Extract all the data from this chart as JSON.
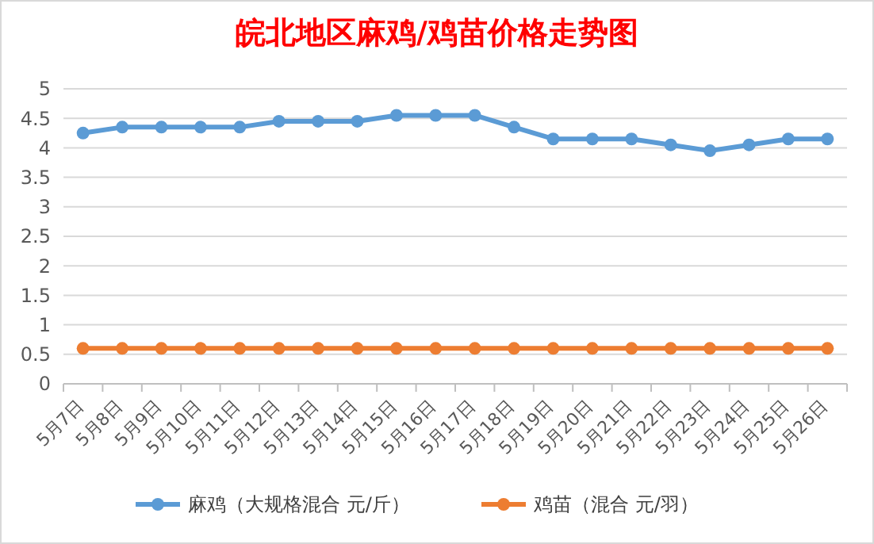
{
  "chart_data": {
    "type": "line",
    "title": "皖北地区麻鸡/鸡苗价格走势图",
    "categories": [
      "5月7日",
      "5月8日",
      "5月9日",
      "5月10日",
      "5月11日",
      "5月12日",
      "5月13日",
      "5月14日",
      "5月15日",
      "5月16日",
      "5月17日",
      "5月18日",
      "5月19日",
      "5月20日",
      "5月21日",
      "5月22日",
      "5月23日",
      "5月24日",
      "5月25日",
      "5月26日"
    ],
    "series": [
      {
        "name": "麻鸡（大规格混合 元/斤）",
        "color": "#5b9bd5",
        "values": [
          4.25,
          4.35,
          4.35,
          4.35,
          4.35,
          4.45,
          4.45,
          4.45,
          4.55,
          4.55,
          4.55,
          4.35,
          4.15,
          4.15,
          4.15,
          4.05,
          3.95,
          4.05,
          4.15,
          4.15
        ]
      },
      {
        "name": "鸡苗（混合 元/羽）",
        "color": "#ed7d31",
        "values": [
          0.6,
          0.6,
          0.6,
          0.6,
          0.6,
          0.6,
          0.6,
          0.6,
          0.6,
          0.6,
          0.6,
          0.6,
          0.6,
          0.6,
          0.6,
          0.6,
          0.6,
          0.6,
          0.6,
          0.6
        ]
      }
    ],
    "ylim": [
      0,
      5
    ],
    "yticks": [
      0,
      0.5,
      1,
      1.5,
      2,
      2.5,
      3,
      3.5,
      4,
      4.5,
      5
    ],
    "grid": "y",
    "legend": "bottom",
    "marker": "circle",
    "line_style": "solid"
  }
}
